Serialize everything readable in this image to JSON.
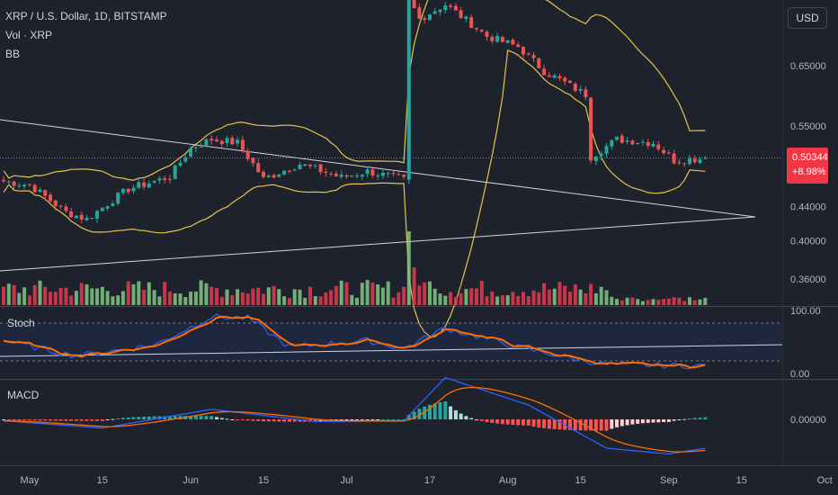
{
  "header": {
    "symbol_line": "XRP / U.S. Dollar, 1D, BITSTAMP",
    "volume_label": "Vol · XRP",
    "bb_label": "BB"
  },
  "currency_button": "USD",
  "last_price": {
    "value": "0.50344",
    "change": "+8.98%"
  },
  "panes": {
    "stoch_title": "Stoch",
    "macd_title": "MACD"
  },
  "colors": {
    "background": "#1e222d",
    "up": "#26a69a",
    "down": "#ef5350",
    "volume_up": "#81c784",
    "volume_down": "#e53950",
    "bollinger": "#e6c34a",
    "trendline": "#d1d4dc",
    "stoch_k": "#2962ff",
    "stoch_d": "#ff6d00",
    "macd_line": "#2962ff",
    "signal_line": "#ff6d00"
  },
  "chart_data": [
    {
      "type": "candlestick",
      "title": "XRP / U.S. Dollar, 1D, BITSTAMP",
      "x_start_date": "2023-04-26",
      "x_end_date": "2023-09-08",
      "price_scale": "log",
      "y_tick_labels": [
        "0.65000",
        "0.55000",
        "0.44000",
        "0.40000",
        "0.36000"
      ],
      "x_tick_labels": [
        "May",
        "15",
        "Jun",
        "15",
        "Jul",
        "17",
        "Aug",
        "15",
        "Sep",
        "15",
        "Oct"
      ],
      "last_price": 0.50344,
      "checkpoints": [
        {
          "date": "2023-04-26",
          "close": 0.472
        },
        {
          "date": "2023-05-01",
          "close": 0.467
        },
        {
          "date": "2023-05-08",
          "close": 0.433
        },
        {
          "date": "2023-05-12",
          "close": 0.425
        },
        {
          "date": "2023-05-20",
          "close": 0.462
        },
        {
          "date": "2023-05-28",
          "close": 0.478
        },
        {
          "date": "2023-06-01",
          "close": 0.517
        },
        {
          "date": "2023-06-05",
          "close": 0.53
        },
        {
          "date": "2023-06-10",
          "close": 0.525
        },
        {
          "date": "2023-06-15",
          "close": 0.475
        },
        {
          "date": "2023-06-22",
          "close": 0.495
        },
        {
          "date": "2023-06-30",
          "close": 0.477
        },
        {
          "date": "2023-07-05",
          "close": 0.485
        },
        {
          "date": "2023-07-12",
          "close": 0.474
        },
        {
          "date": "2023-07-13",
          "close": 0.78
        },
        {
          "date": "2023-07-15",
          "close": 0.74
        },
        {
          "date": "2023-07-20",
          "close": 0.77
        },
        {
          "date": "2023-07-28",
          "close": 0.705
        },
        {
          "date": "2023-08-03",
          "close": 0.685
        },
        {
          "date": "2023-08-08",
          "close": 0.64
        },
        {
          "date": "2023-08-16",
          "close": 0.6
        },
        {
          "date": "2023-08-17",
          "close": 0.505
        },
        {
          "date": "2023-08-22",
          "close": 0.53
        },
        {
          "date": "2023-08-29",
          "close": 0.525
        },
        {
          "date": "2023-09-02",
          "close": 0.5
        },
        {
          "date": "2023-09-08",
          "close": 0.503
        }
      ],
      "indicators": [
        "Volume",
        "Bollinger Bands"
      ]
    },
    {
      "type": "line",
      "title": "Stoch",
      "y_tick_labels": [
        "100.00",
        "0.00"
      ],
      "ylim": [
        0,
        100
      ],
      "bands": [
        20,
        80
      ],
      "series": [
        {
          "name": "%K"
        },
        {
          "name": "%D"
        }
      ],
      "checkpoints_k": [
        {
          "date": "2023-04-26",
          "value": 52
        },
        {
          "date": "2023-05-10",
          "value": 28
        },
        {
          "date": "2023-05-25",
          "value": 45
        },
        {
          "date": "2023-06-05",
          "value": 90
        },
        {
          "date": "2023-06-12",
          "value": 88
        },
        {
          "date": "2023-06-20",
          "value": 42
        },
        {
          "date": "2023-07-05",
          "value": 52
        },
        {
          "date": "2023-07-12",
          "value": 40
        },
        {
          "date": "2023-07-20",
          "value": 72
        },
        {
          "date": "2023-08-05",
          "value": 38
        },
        {
          "date": "2023-08-20",
          "value": 14
        },
        {
          "date": "2023-09-08",
          "value": 12
        }
      ]
    },
    {
      "type": "bar",
      "title": "MACD",
      "y_tick_labels": [
        "0.00000"
      ],
      "series": [
        {
          "name": "MACD"
        },
        {
          "name": "Signal"
        },
        {
          "name": "Histogram"
        }
      ],
      "checkpoints_macd": [
        {
          "date": "2023-04-26",
          "value": -0.002
        },
        {
          "date": "2023-05-15",
          "value": -0.012
        },
        {
          "date": "2023-06-05",
          "value": 0.014
        },
        {
          "date": "2023-06-25",
          "value": -0.003
        },
        {
          "date": "2023-07-12",
          "value": -0.002
        },
        {
          "date": "2023-07-20",
          "value": 0.058
        },
        {
          "date": "2023-08-05",
          "value": 0.02
        },
        {
          "date": "2023-08-20",
          "value": -0.04
        },
        {
          "date": "2023-09-01",
          "value": -0.048
        },
        {
          "date": "2023-09-08",
          "value": -0.04
        }
      ]
    }
  ]
}
